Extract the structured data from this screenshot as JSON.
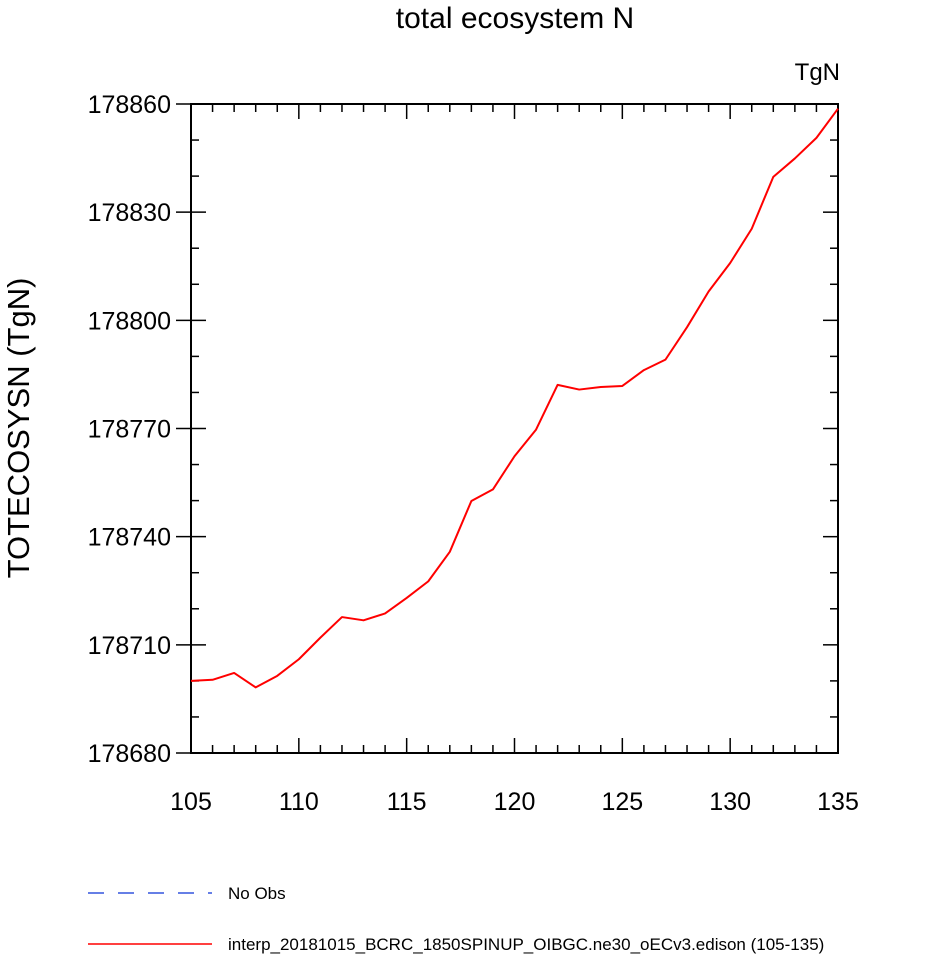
{
  "chart_data": {
    "type": "line",
    "title": "total ecosystem N",
    "units": "TgN",
    "xlabel": "",
    "ylabel": "TOTECOSYSN  (TgN)",
    "xlim": [
      105,
      135
    ],
    "ylim": [
      178680,
      178860
    ],
    "xticks": [
      105,
      110,
      115,
      120,
      125,
      130,
      135
    ],
    "yticks": [
      178680,
      178710,
      178740,
      178770,
      178800,
      178830,
      178860
    ],
    "grid": false,
    "legend_position": "bottom",
    "series": [
      {
        "name": "No Obs",
        "color": "#3355dd",
        "style": "dashed",
        "x": [],
        "values": []
      },
      {
        "name": "interp_20181015_BCRC_1850SPINUP_OIBGC.ne30_oECv3.edison (105-135)",
        "color": "#ff0000",
        "style": "solid",
        "x": [
          105,
          106,
          107,
          108,
          109,
          110,
          111,
          112,
          113,
          114,
          115,
          116,
          117,
          118,
          119,
          120,
          121,
          122,
          123,
          124,
          125,
          126,
          127,
          128,
          129,
          130,
          131,
          132,
          133,
          134,
          135
        ],
        "values": [
          178700,
          178700.3,
          178702.2,
          178698.2,
          178701.4,
          178706,
          178712,
          178717.7,
          178716.8,
          178718.7,
          178723,
          178727.6,
          178735.8,
          178749.9,
          178753.1,
          178762.3,
          178769.7,
          178782.1,
          178780.8,
          178781.5,
          178781.8,
          178786.2,
          178789.1,
          178798.1,
          178808,
          178815.9,
          178825.4,
          178839.8,
          178844.9,
          178850.6,
          178858.7
        ]
      }
    ]
  }
}
